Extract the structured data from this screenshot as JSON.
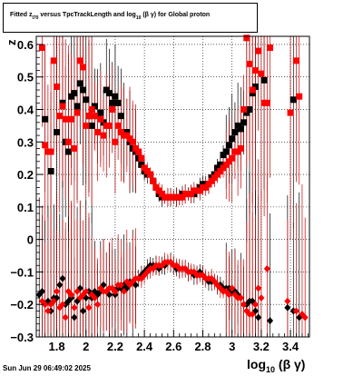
{
  "title": {
    "part1": "Fitted  z",
    "sub1": "I70",
    "part2": "  versus TpcTrackLength and log",
    "sub2": "10",
    "part3": " (β  γ) for Global proton"
  },
  "footer_text": "Sun Jun 29 06:49:02 2025",
  "chart_data": {
    "type": "scatter",
    "title": "Fitted z_I70 versus TpcTrackLength and log10(β γ) for Global proton",
    "ylabel": "z",
    "xlabel": {
      "main": "log",
      "sub": "10",
      "rest": "(β γ)"
    },
    "xlim": [
      1.66,
      3.53
    ],
    "ylim": [
      -0.3,
      0.625
    ],
    "x_ticks": [
      1.8,
      2.0,
      2.2,
      2.4,
      2.6,
      2.8,
      3.0,
      3.2,
      3.4
    ],
    "x_tick_labels": [
      "1.8",
      "2",
      "2.2",
      "2.4",
      "2.6",
      "2.8",
      "3",
      "3.2",
      "3.4"
    ],
    "y_ticks": [
      -0.3,
      -0.2,
      -0.1,
      0,
      0.1,
      0.2,
      0.3,
      0.4,
      0.5,
      0.6
    ],
    "y_tick_labels": [
      "−0.3",
      "−0.2",
      "−0.1",
      "0",
      "0.1",
      "0.2",
      "0.3",
      "0.4",
      "0.5",
      "0.6"
    ],
    "grid": true,
    "colors": {
      "mean": "#ff0000",
      "mean_black": "#000000",
      "sigma": "#ff0000",
      "sigma_black": "#000000",
      "errorbar": "#cc0000"
    },
    "series": [
      {
        "role": "mean-black",
        "x": [
          1.72,
          1.76,
          1.8,
          1.84,
          1.86,
          1.88,
          1.9,
          1.92,
          1.94,
          1.96,
          1.98,
          2.0,
          2.02,
          2.04,
          2.06,
          2.08,
          2.1,
          2.12,
          2.14,
          2.16,
          2.18,
          2.2,
          2.22,
          2.24,
          2.26,
          2.28,
          2.3,
          2.32,
          2.34,
          2.36,
          2.38,
          2.4,
          2.42,
          2.44,
          2.46,
          2.48,
          2.5,
          2.52,
          2.54,
          2.56,
          2.58,
          2.6,
          2.62,
          2.64,
          2.66,
          2.68,
          2.7,
          2.72,
          2.74,
          2.76,
          2.78,
          2.8,
          2.82,
          2.84,
          2.86,
          2.88,
          2.9,
          2.92,
          2.94,
          2.96,
          2.98,
          3.0,
          3.02,
          3.04,
          3.06,
          3.08,
          3.1,
          3.12,
          3.14,
          3.16,
          3.22,
          3.42
        ],
        "y": [
          0.37,
          0.21,
          0.33,
          0.42,
          0.3,
          0.27,
          0.44,
          0.45,
          0.41,
          0.48,
          0.46,
          0.43,
          0.38,
          0.35,
          0.41,
          0.38,
          0.39,
          0.36,
          0.46,
          0.45,
          0.42,
          0.44,
          0.42,
          0.38,
          0.33,
          0.33,
          0.3,
          0.28,
          0.27,
          0.25,
          0.23,
          0.21,
          0.2,
          0.2,
          0.18,
          0.16,
          0.14,
          0.13,
          0.13,
          0.13,
          0.13,
          0.13,
          0.13,
          0.13,
          0.14,
          0.14,
          0.14,
          0.14,
          0.14,
          0.15,
          0.16,
          0.17,
          0.17,
          0.17,
          0.19,
          0.2,
          0.22,
          0.23,
          0.26,
          0.27,
          0.29,
          0.31,
          0.33,
          0.35,
          0.34,
          0.36,
          0.39,
          0.4,
          0.45,
          0.47,
          0.49,
          0.43
        ]
      },
      {
        "role": "mean-red",
        "x": [
          1.7,
          1.72,
          1.74,
          1.76,
          1.78,
          1.8,
          1.82,
          1.84,
          1.86,
          1.88,
          1.9,
          1.92,
          1.94,
          1.96,
          1.98,
          2.0,
          2.02,
          2.04,
          2.06,
          2.08,
          2.1,
          2.12,
          2.14,
          2.16,
          2.18,
          2.2,
          2.22,
          2.24,
          2.26,
          2.28,
          2.3,
          2.32,
          2.34,
          2.36,
          2.38,
          2.4,
          2.42,
          2.44,
          2.46,
          2.48,
          2.5,
          2.52,
          2.54,
          2.56,
          2.58,
          2.6,
          2.62,
          2.64,
          2.66,
          2.68,
          2.7,
          2.72,
          2.74,
          2.76,
          2.78,
          2.8,
          2.82,
          2.84,
          2.86,
          2.88,
          2.9,
          2.92,
          2.94,
          2.96,
          2.98,
          3.0,
          3.02,
          3.04,
          3.06,
          3.08,
          3.1,
          3.12,
          3.14,
          3.16,
          3.18,
          3.2,
          3.22,
          3.24,
          3.26,
          3.4,
          3.44,
          3.46
        ],
        "y": [
          0.59,
          0.29,
          0.27,
          0.27,
          0.55,
          0.47,
          0.38,
          0.41,
          0.37,
          0.3,
          0.37,
          0.28,
          0.39,
          0.55,
          0.53,
          0.35,
          0.38,
          0.4,
          0.38,
          0.33,
          0.37,
          0.32,
          0.35,
          0.35,
          0.4,
          0.3,
          0.35,
          0.33,
          0.32,
          0.32,
          0.31,
          0.3,
          0.28,
          0.27,
          0.25,
          0.22,
          0.21,
          0.2,
          0.18,
          0.16,
          0.15,
          0.14,
          0.13,
          0.13,
          0.13,
          0.13,
          0.13,
          0.13,
          0.13,
          0.14,
          0.14,
          0.14,
          0.15,
          0.15,
          0.15,
          0.16,
          0.16,
          0.17,
          0.18,
          0.19,
          0.2,
          0.21,
          0.22,
          0.23,
          0.24,
          0.25,
          0.27,
          0.27,
          0.28,
          0.4,
          0.62,
          0.54,
          0.46,
          0.52,
          0.58,
          0.51,
          0.42,
          0.42,
          0.59,
          0.39,
          0.55,
          0.44
        ]
      },
      {
        "role": "sigma-black",
        "x": [
          1.68,
          1.7,
          1.72,
          1.74,
          1.76,
          1.78,
          1.8,
          1.82,
          1.84,
          1.86,
          1.88,
          1.9,
          1.92,
          1.94,
          1.96,
          1.98,
          2.0,
          2.02,
          2.04,
          2.06,
          2.08,
          2.1,
          2.12,
          2.14,
          2.16,
          2.18,
          2.2,
          2.22,
          2.24,
          2.26,
          2.28,
          2.3,
          2.32,
          2.34,
          2.36,
          2.38,
          2.4,
          2.42,
          2.44,
          2.46,
          2.48,
          2.5,
          2.52,
          2.54,
          2.56,
          2.58,
          2.6,
          2.62,
          2.64,
          2.66,
          2.68,
          2.7,
          2.72,
          2.74,
          2.76,
          2.78,
          2.8,
          2.82,
          2.84,
          2.86,
          2.88,
          2.9,
          2.92,
          2.94,
          2.96,
          2.98,
          3.0,
          3.02,
          3.04,
          3.06,
          3.08,
          3.1,
          3.12,
          3.14,
          3.16,
          3.18,
          3.26,
          3.38,
          3.42,
          3.46
        ],
        "y": [
          -0.17,
          -0.16,
          -0.2,
          -0.19,
          -0.22,
          -0.18,
          -0.18,
          -0.14,
          -0.12,
          -0.2,
          -0.19,
          -0.18,
          -0.24,
          -0.19,
          -0.15,
          -0.22,
          -0.18,
          -0.16,
          -0.18,
          -0.16,
          -0.17,
          -0.16,
          -0.14,
          -0.16,
          -0.17,
          -0.15,
          -0.17,
          -0.15,
          -0.15,
          -0.14,
          -0.15,
          -0.13,
          -0.13,
          -0.14,
          -0.12,
          -0.11,
          -0.1,
          -0.09,
          -0.08,
          -0.08,
          -0.08,
          -0.09,
          -0.08,
          -0.08,
          -0.07,
          -0.07,
          -0.08,
          -0.09,
          -0.09,
          -0.09,
          -0.09,
          -0.1,
          -0.1,
          -0.11,
          -0.11,
          -0.1,
          -0.11,
          -0.12,
          -0.13,
          -0.13,
          -0.13,
          -0.14,
          -0.14,
          -0.15,
          -0.15,
          -0.15,
          -0.16,
          -0.16,
          -0.17,
          -0.18,
          -0.2,
          -0.2,
          -0.19,
          -0.19,
          -0.22,
          -0.24,
          -0.25,
          -0.21,
          -0.22,
          -0.24
        ]
      },
      {
        "role": "sigma-red",
        "x": [
          1.7,
          1.72,
          1.74,
          1.76,
          1.78,
          1.8,
          1.82,
          1.84,
          1.86,
          1.88,
          1.9,
          1.92,
          1.94,
          1.96,
          1.98,
          2.0,
          2.02,
          2.04,
          2.06,
          2.08,
          2.1,
          2.12,
          2.14,
          2.16,
          2.18,
          2.2,
          2.22,
          2.24,
          2.26,
          2.28,
          2.3,
          2.32,
          2.34,
          2.36,
          2.38,
          2.4,
          2.42,
          2.44,
          2.46,
          2.48,
          2.5,
          2.52,
          2.54,
          2.56,
          2.58,
          2.6,
          2.62,
          2.64,
          2.66,
          2.68,
          2.7,
          2.72,
          2.74,
          2.76,
          2.78,
          2.8,
          2.82,
          2.84,
          2.86,
          2.88,
          2.9,
          2.92,
          2.94,
          2.96,
          2.98,
          3.0,
          3.02,
          3.04,
          3.06,
          3.08,
          3.1,
          3.12,
          3.14,
          3.16,
          3.18,
          3.2,
          3.24,
          3.38,
          3.44,
          3.48,
          3.5
        ],
        "y": [
          -0.19,
          -0.2,
          -0.22,
          -0.2,
          -0.19,
          -0.16,
          -0.21,
          -0.2,
          -0.24,
          -0.16,
          -0.17,
          -0.21,
          -0.16,
          -0.18,
          -0.17,
          -0.16,
          -0.21,
          -0.17,
          -0.18,
          -0.2,
          -0.15,
          -0.16,
          -0.16,
          -0.15,
          -0.15,
          -0.16,
          -0.14,
          -0.14,
          -0.16,
          -0.13,
          -0.14,
          -0.13,
          -0.12,
          -0.12,
          -0.12,
          -0.11,
          -0.1,
          -0.09,
          -0.09,
          -0.08,
          -0.08,
          -0.08,
          -0.07,
          -0.07,
          -0.07,
          -0.08,
          -0.08,
          -0.09,
          -0.09,
          -0.09,
          -0.1,
          -0.1,
          -0.1,
          -0.11,
          -0.11,
          -0.11,
          -0.12,
          -0.12,
          -0.12,
          -0.13,
          -0.14,
          -0.15,
          -0.16,
          -0.16,
          -0.17,
          -0.15,
          -0.17,
          -0.18,
          -0.18,
          -0.2,
          -0.22,
          -0.23,
          -0.23,
          -0.2,
          -0.15,
          -0.18,
          -0.09,
          -0.19,
          -0.22,
          -0.23,
          -0.24
        ]
      }
    ]
  }
}
